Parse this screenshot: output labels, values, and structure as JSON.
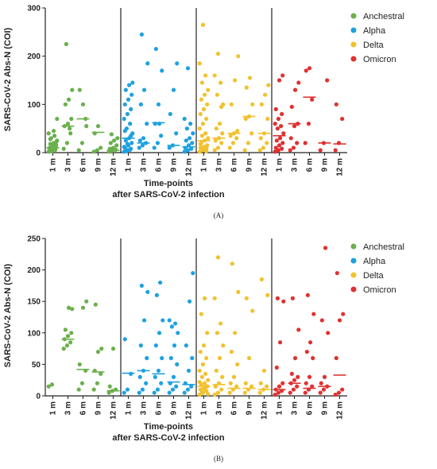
{
  "colors": {
    "Anchestral": "#6ab04c",
    "Alpha": "#1da1e0",
    "Delta": "#f2c12e",
    "Omicron": "#e03131"
  },
  "legend": [
    "Anchestral",
    "Alpha",
    "Delta",
    "Omicron"
  ],
  "chart_data": [
    {
      "type": "scatter",
      "panel_label": "(A)",
      "ylabel": "SARS-CoV-2 Abs-N (COI)",
      "xlabel": "Time-points",
      "xlabel2": "after SARS-CoV-2 infection",
      "ylim": [
        0,
        300
      ],
      "yticks": [
        0,
        100,
        200,
        300
      ],
      "categories": [
        "1 m",
        "3 m",
        "6 m",
        "9 m",
        "12 m"
      ],
      "grid": false,
      "legend_position": "top-right",
      "series": [
        {
          "name": "Anchestral",
          "medians": [
            10,
            55,
            70,
            42,
            5
          ],
          "points": [
            [
              2,
              5,
              8,
              10,
              12,
              15,
              18,
              20,
              25,
              30,
              35,
              40,
              3,
              6,
              9,
              14,
              22,
              28,
              45,
              70
            ],
            [
              8,
              20,
              40,
              55,
              60,
              70,
              100,
              110,
              130,
              225,
              50
            ],
            [
              5,
              20,
              70,
              130,
              100,
              55
            ],
            [
              2,
              5,
              10,
              40,
              55
            ],
            [
              2,
              4,
              6,
              8,
              10,
              15,
              20,
              25,
              30,
              38
            ]
          ]
        },
        {
          "name": "Alpha",
          "medians": [
            30,
            20,
            62,
            15,
            12
          ],
          "points": [
            [
              2,
              5,
              8,
              10,
              15,
              20,
              25,
              30,
              40,
              50,
              60,
              70,
              80,
              90,
              100,
              110,
              120,
              130,
              140,
              145,
              3,
              6,
              12,
              18,
              35,
              45
            ],
            [
              10,
              15,
              20,
              25,
              30,
              60,
              100,
              130,
              185,
              245
            ],
            [
              10,
              20,
              35,
              60,
              100,
              170,
              215,
              60
            ],
            [
              10,
              15,
              40,
              80,
              130,
              185
            ],
            [
              2,
              5,
              8,
              10,
              15,
              20,
              25,
              30,
              40,
              50,
              60,
              70,
              175
            ]
          ]
        },
        {
          "name": "Delta",
          "medians": [
            25,
            30,
            40,
            75,
            40
          ],
          "points": [
            [
              2,
              5,
              8,
              10,
              12,
              15,
              20,
              25,
              30,
              35,
              40,
              50,
              60,
              70,
              80,
              90,
              100,
              110,
              120,
              130,
              145,
              160,
              185,
              265,
              3,
              18
            ],
            [
              5,
              10,
              20,
              25,
              30,
              40,
              50,
              60,
              100,
              120,
              145,
              160,
              205,
              95
            ],
            [
              10,
              20,
              30,
              35,
              40,
              45,
              100,
              150,
              200
            ],
            [
              5,
              20,
              40,
              70,
              75,
              100,
              135,
              155
            ],
            [
              5,
              10,
              20,
              30,
              40,
              70,
              100,
              120,
              140
            ]
          ]
        },
        {
          "name": "Omicron",
          "medians": [
            35,
            60,
            115,
            20,
            18
          ],
          "points": [
            [
              2,
              5,
              8,
              10,
              15,
              20,
              25,
              30,
              40,
              50,
              55,
              60,
              70,
              80,
              90,
              150,
              160
            ],
            [
              5,
              10,
              20,
              30,
              55,
              60,
              95,
              130,
              145
            ],
            [
              20,
              60,
              110,
              170,
              175
            ],
            [
              5,
              20,
              150
            ],
            [
              5,
              20,
              70,
              100
            ]
          ]
        }
      ]
    },
    {
      "type": "scatter",
      "panel_label": "(B)",
      "ylabel": "SARS-CoV-2 Abs-N (COI)",
      "xlabel": "Time-points",
      "xlabel2": "after SARS-CoV-2 infection",
      "ylim": [
        0,
        250
      ],
      "yticks": [
        0,
        50,
        100,
        150,
        200,
        250
      ],
      "categories": [
        "1 m",
        "3 m",
        "6 m",
        "9 m",
        "12 m"
      ],
      "grid": false,
      "legend_position": "top-right",
      "series": [
        {
          "name": "Anchestral",
          "medians": [
            null,
            90,
            42,
            38,
            8
          ],
          "points": [
            [
              15,
              18
            ],
            [
              75,
              80,
              85,
              90,
              95,
              100,
              105,
              140,
              138
            ],
            [
              10,
              20,
              40,
              50,
              140,
              150
            ],
            [
              10,
              20,
              35,
              40,
              70,
              75,
              145
            ],
            [
              5,
              8,
              10,
              15,
              75
            ]
          ]
        },
        {
          "name": "Alpha",
          "medians": [
            36,
            40,
            35,
            22,
            18
          ],
          "points": [
            [
              5,
              10,
              35,
              90
            ],
            [
              5,
              10,
              20,
              30,
              40,
              60,
              80,
              120,
              165,
              175
            ],
            [
              5,
              10,
              20,
              30,
              40,
              60,
              80,
              100,
              120,
              160,
              180
            ],
            [
              5,
              10,
              15,
              20,
              30,
              50,
              60,
              80,
              100,
              110,
              115,
              120
            ],
            [
              5,
              10,
              15,
              20,
              40,
              60,
              80,
              150,
              195
            ]
          ]
        },
        {
          "name": "Delta",
          "medians": [
            15,
            18,
            12,
            12,
            10
          ],
          "points": [
            [
              2,
              5,
              8,
              10,
              12,
              15,
              18,
              20,
              25,
              30,
              35,
              40,
              50,
              60,
              70,
              80,
              100,
              130,
              155,
              3,
              6,
              14,
              22
            ],
            [
              2,
              5,
              10,
              15,
              20,
              30,
              40,
              60,
              80,
              100,
              115,
              155,
              220
            ],
            [
              5,
              10,
              15,
              20,
              30,
              50,
              70,
              100,
              165,
              210
            ],
            [
              5,
              10,
              15,
              20,
              60,
              135,
              155
            ],
            [
              5,
              10,
              15,
              20,
              40,
              160,
              185
            ]
          ]
        },
        {
          "name": "Omicron",
          "medians": [
            10,
            20,
            12,
            15,
            33
          ],
          "points": [
            [
              2,
              5,
              8,
              10,
              15,
              20,
              45,
              85,
              150,
              155
            ],
            [
              5,
              10,
              15,
              20,
              25,
              30,
              35,
              60,
              105,
              155
            ],
            [
              5,
              10,
              15,
              20,
              30,
              60,
              70,
              85,
              130,
              160
            ],
            [
              5,
              10,
              15,
              20,
              30,
              100,
              120,
              235
            ],
            [
              2,
              5,
              10,
              60,
              120,
              130,
              195
            ]
          ]
        }
      ]
    }
  ]
}
